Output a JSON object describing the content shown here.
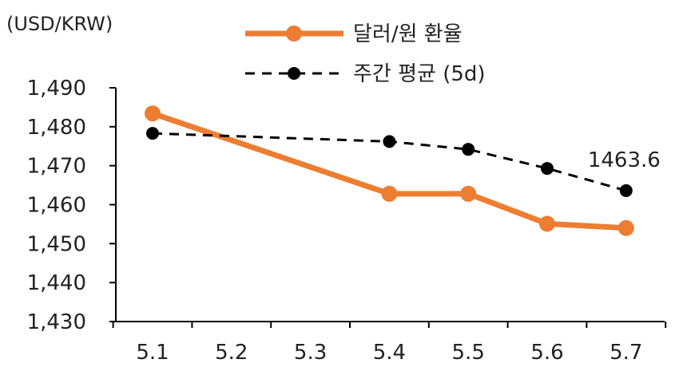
{
  "chart_data": {
    "type": "line",
    "unit_label": "(USD/KRW)",
    "categories": [
      "5.1",
      "5.2",
      "5.3",
      "5.4",
      "5.5",
      "5.6",
      "5.7"
    ],
    "y_ticks": [
      "1,430",
      "1,440",
      "1,450",
      "1,460",
      "1,470",
      "1,480",
      "1,490"
    ],
    "ylim": [
      1430,
      1490
    ],
    "grid": false,
    "legend_position": "top-center",
    "series": [
      {
        "name": "달러/원 환율",
        "style": "solid",
        "color": "#ED7D31",
        "points": [
          {
            "x": "5.1",
            "y": 1483.4
          },
          {
            "x": "5.4",
            "y": 1462.8
          },
          {
            "x": "5.5",
            "y": 1462.8
          },
          {
            "x": "5.6",
            "y": 1455.1
          },
          {
            "x": "5.7",
            "y": 1454.0
          }
        ]
      },
      {
        "name": "주간 평균 (5d)",
        "style": "dashed",
        "color": "#000000",
        "points": [
          {
            "x": "5.1",
            "y": 1478.3
          },
          {
            "x": "5.4",
            "y": 1476.2
          },
          {
            "x": "5.5",
            "y": 1474.2
          },
          {
            "x": "5.6",
            "y": 1469.3
          },
          {
            "x": "5.7",
            "y": 1463.6
          }
        ]
      }
    ],
    "annotation": {
      "text": "1463.6",
      "series": 1,
      "x": "5.7"
    }
  }
}
